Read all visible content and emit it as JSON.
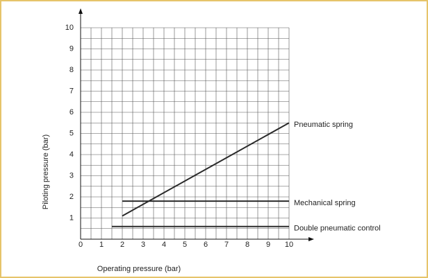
{
  "chart_data": {
    "type": "line",
    "x_label": "Operating pressure (bar)",
    "y_label": "Piloting pressure (bar)",
    "xlim": [
      0,
      10
    ],
    "ylim": [
      0,
      10
    ],
    "xticks": [
      0,
      1,
      2,
      3,
      4,
      5,
      6,
      7,
      8,
      9,
      10
    ],
    "yticks": [
      1,
      2,
      3,
      4,
      5,
      6,
      7,
      8,
      9,
      10
    ],
    "grid": true,
    "series": [
      {
        "name": "Pneumatic spring",
        "color": "#2a2a2a",
        "x": [
          2,
          10
        ],
        "values": [
          1.1,
          5.5
        ]
      },
      {
        "name": "Mechanical spring",
        "color": "#2a2a2a",
        "x": [
          2,
          10
        ],
        "values": [
          1.8,
          1.8
        ]
      },
      {
        "name": "Double pneumatic control",
        "color": "#2a2a2a",
        "x": [
          1.5,
          10
        ],
        "values": [
          0.6,
          0.6
        ]
      }
    ]
  }
}
